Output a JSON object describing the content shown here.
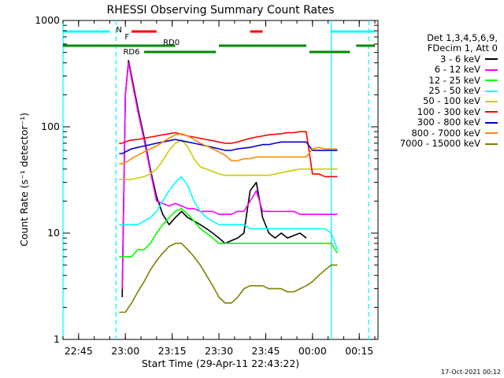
{
  "chart_data": {
    "type": "line",
    "title": "RHESSI Observing Summary Count Rates",
    "xlabel": "Start Time (29-Apr-11 22:43:22)",
    "ylabel": "Count Rate (s⁻¹ detector⁻¹)",
    "log_y": true,
    "ylim": [
      1,
      1000
    ],
    "xlim": [
      "22:40",
      "00:21"
    ],
    "grid": false,
    "legend_position": "right",
    "y_ticks": [
      "1",
      "10",
      "100",
      "1000"
    ],
    "x_ticks": [
      "22:45",
      "23:00",
      "23:15",
      "23:30",
      "23:45",
      "00:00",
      "00:15"
    ],
    "x": [
      "22:50",
      "22:54",
      "22:56",
      "22:57",
      "22:58",
      "22:59",
      "23:00",
      "23:01",
      "23:02",
      "23:04",
      "23:06",
      "23:08",
      "23:10",
      "23:12",
      "23:14",
      "23:16",
      "23:18",
      "23:20",
      "23:22",
      "23:24",
      "23:26",
      "23:28",
      "23:30",
      "23:32",
      "23:34",
      "23:36",
      "23:38",
      "23:40",
      "23:42",
      "23:44",
      "23:46",
      "23:48",
      "23:50",
      "23:52",
      "23:54",
      "23:56",
      "23:58",
      "00:00",
      "00:02",
      "00:04",
      "00:06",
      "00:08",
      "00:10",
      "00:12",
      "00:14",
      "00:16"
    ],
    "series": [
      {
        "name": "3 - 6 keV",
        "color": "#000000",
        "values": [
          null,
          null,
          null,
          null,
          null,
          2.5,
          200,
          420,
          300,
          150,
          80,
          40,
          22,
          15,
          12,
          14,
          16,
          14,
          13,
          12,
          11,
          10,
          9,
          8,
          8.5,
          9,
          10,
          25,
          30,
          14,
          10,
          9,
          10,
          9,
          9.5,
          10,
          9,
          null,
          null,
          null,
          null,
          null,
          null,
          null,
          null,
          null
        ]
      },
      {
        "name": "6 - 12 keV",
        "color": "#ff00ff",
        "values": [
          null,
          null,
          null,
          null,
          null,
          3,
          200,
          400,
          280,
          140,
          75,
          38,
          20,
          19,
          18,
          19,
          18,
          17,
          17,
          16,
          16,
          16,
          15,
          15,
          15,
          16,
          16,
          20,
          25,
          16,
          16,
          16,
          16,
          16,
          16,
          15,
          15,
          15,
          15,
          15,
          15,
          15,
          null,
          null,
          null,
          null
        ]
      },
      {
        "name": "12 - 25 keV",
        "color": "#00ff00",
        "values": [
          null,
          null,
          null,
          null,
          6,
          6,
          6,
          6,
          6,
          7,
          7,
          8,
          10,
          12,
          14,
          16,
          17,
          15,
          13,
          11,
          10,
          9,
          8,
          8,
          8,
          8,
          8,
          8,
          8,
          8,
          8,
          8,
          8,
          8,
          8,
          8,
          8,
          8,
          8,
          8,
          8,
          6.5,
          null,
          null,
          null,
          null
        ]
      },
      {
        "name": "25 - 50 keV",
        "color": "#00ffff",
        "values": [
          null,
          null,
          null,
          null,
          12,
          12,
          12,
          12,
          12,
          12,
          13,
          14,
          16,
          20,
          25,
          30,
          34,
          28,
          20,
          16,
          14,
          13,
          12,
          12,
          12,
          12,
          12,
          11,
          11,
          11,
          11,
          11,
          11,
          11,
          11,
          11,
          11,
          11,
          11,
          11,
          10,
          7,
          null,
          null,
          null,
          null
        ]
      },
      {
        "name": "50 - 100 keV",
        "color": "#cccc00",
        "values": [
          null,
          null,
          null,
          null,
          32,
          32,
          32,
          32,
          32,
          33,
          34,
          36,
          40,
          48,
          60,
          70,
          75,
          65,
          50,
          42,
          40,
          38,
          36,
          35,
          35,
          35,
          35,
          35,
          35,
          35,
          35,
          36,
          37,
          38,
          39,
          40,
          40,
          40,
          40,
          40,
          40,
          40,
          null,
          null,
          null,
          null
        ]
      },
      {
        "name": "100 - 300 keV",
        "color": "#ff0000",
        "values": [
          null,
          null,
          null,
          null,
          70,
          70,
          72,
          74,
          75,
          76,
          78,
          80,
          82,
          84,
          86,
          88,
          85,
          82,
          80,
          78,
          76,
          74,
          72,
          70,
          70,
          72,
          75,
          78,
          80,
          82,
          84,
          85,
          86,
          88,
          88,
          90,
          90,
          36,
          36,
          34,
          34,
          34,
          null,
          null,
          null,
          null
        ]
      },
      {
        "name": "300 - 800 keV",
        "color": "#0000cc",
        "values": [
          null,
          null,
          null,
          null,
          56,
          56,
          58,
          60,
          62,
          64,
          66,
          68,
          70,
          72,
          74,
          76,
          74,
          72,
          70,
          68,
          66,
          64,
          62,
          60,
          60,
          62,
          63,
          64,
          66,
          68,
          68,
          70,
          72,
          72,
          72,
          72,
          72,
          60,
          60,
          60,
          60,
          60,
          null,
          null,
          null,
          null
        ]
      },
      {
        "name": "800 - 7000 keV",
        "color": "#ff8800",
        "values": [
          null,
          null,
          null,
          null,
          45,
          45,
          46,
          48,
          50,
          54,
          58,
          62,
          66,
          72,
          78,
          84,
          86,
          82,
          76,
          70,
          66,
          62,
          58,
          54,
          48,
          48,
          50,
          50,
          52,
          52,
          52,
          52,
          52,
          52,
          52,
          52,
          52,
          62,
          64,
          62,
          62,
          62,
          null,
          null,
          null,
          null
        ]
      },
      {
        "name": "7000 - 15000 keV",
        "color": "#808000",
        "values": [
          null,
          null,
          null,
          null,
          1.8,
          1.8,
          1.8,
          2,
          2.2,
          2.8,
          3.5,
          4.5,
          5.5,
          6.5,
          7.5,
          8,
          8,
          7,
          6,
          5,
          4,
          3.2,
          2.5,
          2.2,
          2.2,
          2.5,
          3,
          3.2,
          3.2,
          3.2,
          3,
          3,
          3,
          2.8,
          2.8,
          3,
          3.2,
          3.5,
          4,
          4.5,
          5,
          5,
          null,
          null,
          null,
          null
        ]
      }
    ],
    "attenuator_bars": [
      {
        "label": "N",
        "color": "#00ffff",
        "row": "top",
        "segments": [
          [
            "22:40",
            "22:55"
          ],
          [
            "00:06",
            "00:20"
          ]
        ]
      },
      {
        "label": "F",
        "color": "#ff0000",
        "row": "top",
        "segments": [
          [
            "23:02",
            "23:10"
          ],
          [
            "23:40",
            "23:44"
          ]
        ]
      },
      {
        "label": "RD0",
        "color": "#008800",
        "row": "mid",
        "segments": [
          [
            "22:40",
            "23:16"
          ],
          [
            "23:30",
            "23:58"
          ],
          [
            "00:14",
            "00:20"
          ]
        ]
      },
      {
        "label": "RD6",
        "color": "#008800",
        "row": "low",
        "segments": [
          [
            "23:06",
            "23:29"
          ],
          [
            "23:59",
            "00:12"
          ]
        ]
      }
    ],
    "vlines": [
      {
        "x": "22:40",
        "color": "#00ffff",
        "style": "solid"
      },
      {
        "x": "22:57",
        "color": "#00ffff",
        "style": "dashed"
      },
      {
        "x": "00:06",
        "color": "#00ffff",
        "style": "solid"
      },
      {
        "x": "00:18",
        "color": "#00ffff",
        "style": "dashed"
      }
    ]
  },
  "legend": {
    "header_lines": [
      "Det 1,3,4,5,6,9,",
      "FDecim 1, Att 0"
    ]
  },
  "footer_stamp": "17-Oct-2021 00:12"
}
